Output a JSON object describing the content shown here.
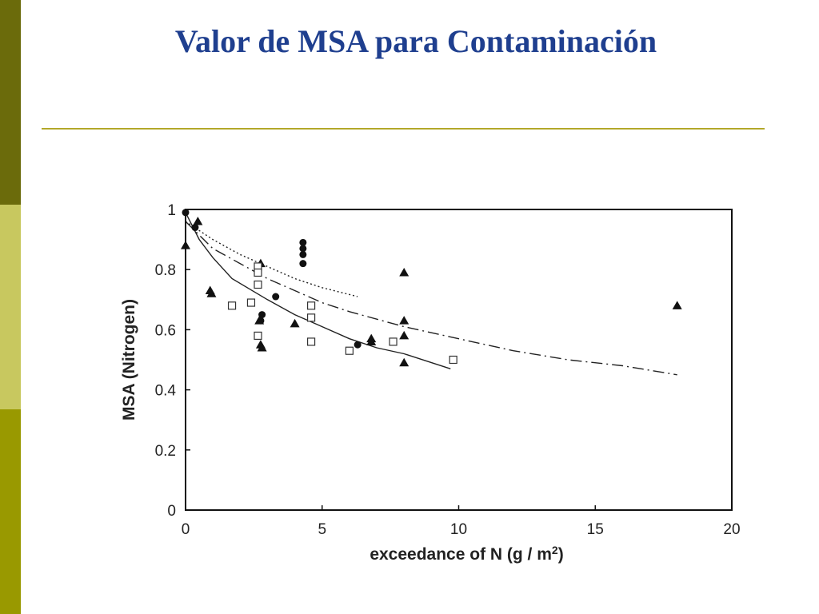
{
  "slide": {
    "title": "Valor de MSA para Contaminación",
    "accent_colors": {
      "title": "#1f3f8f",
      "rule": "#b3a82a",
      "bar_dark": "#6b6b0b",
      "bar_light": "#c8c85f",
      "bar_mid": "#999900"
    }
  },
  "chart_data": {
    "type": "scatter",
    "xlabel": "exceedance of N (g / m2)",
    "ylabel": "MSA (Nitrogen)",
    "xlim": [
      0,
      20
    ],
    "ylim": [
      0,
      1
    ],
    "xticks": [
      "0",
      "5",
      "10",
      "15",
      "20"
    ],
    "yticks": [
      "0",
      "0.2",
      "0.4",
      "0.6",
      "0.8",
      "1"
    ],
    "grid": false,
    "series": [
      {
        "marker": "circle",
        "points": [
          [
            0,
            0.99
          ],
          [
            0.35,
            0.94
          ],
          [
            2.75,
            0.63
          ],
          [
            2.8,
            0.65
          ],
          [
            3.3,
            0.71
          ],
          [
            4.3,
            0.89
          ],
          [
            4.3,
            0.87
          ],
          [
            4.3,
            0.85
          ],
          [
            4.3,
            0.82
          ],
          [
            6.3,
            0.55
          ]
        ]
      },
      {
        "marker": "triangle",
        "points": [
          [
            0,
            0.88
          ],
          [
            0.45,
            0.96
          ],
          [
            0.9,
            0.73
          ],
          [
            0.95,
            0.72
          ],
          [
            2.75,
            0.82
          ],
          [
            2.7,
            0.63
          ],
          [
            2.75,
            0.55
          ],
          [
            2.8,
            0.54
          ],
          [
            4.0,
            0.62
          ],
          [
            6.8,
            0.57
          ],
          [
            6.8,
            0.56
          ],
          [
            8.0,
            0.79
          ],
          [
            8.0,
            0.63
          ],
          [
            8.0,
            0.58
          ],
          [
            8.0,
            0.49
          ],
          [
            18.0,
            0.68
          ]
        ]
      },
      {
        "marker": "square",
        "points": [
          [
            1.7,
            0.68
          ],
          [
            2.4,
            0.69
          ],
          [
            2.65,
            0.81
          ],
          [
            2.65,
            0.79
          ],
          [
            2.65,
            0.75
          ],
          [
            2.65,
            0.58
          ],
          [
            4.6,
            0.68
          ],
          [
            4.6,
            0.64
          ],
          [
            4.6,
            0.56
          ],
          [
            6.0,
            0.53
          ],
          [
            7.6,
            0.56
          ],
          [
            9.8,
            0.5
          ]
        ]
      }
    ],
    "curves": [
      {
        "style": "dotted",
        "points": [
          [
            0,
            0.96
          ],
          [
            1,
            0.9
          ],
          [
            2,
            0.85
          ],
          [
            3,
            0.81
          ],
          [
            4,
            0.77
          ],
          [
            5,
            0.74
          ],
          [
            6.3,
            0.71
          ]
        ]
      },
      {
        "style": "solid",
        "points": [
          [
            0,
            0.99
          ],
          [
            0.5,
            0.9
          ],
          [
            1,
            0.84
          ],
          [
            1.7,
            0.77
          ],
          [
            3,
            0.7
          ],
          [
            4,
            0.65
          ],
          [
            5,
            0.61
          ],
          [
            6,
            0.57
          ],
          [
            7,
            0.54
          ],
          [
            8,
            0.52
          ],
          [
            9.7,
            0.47
          ]
        ]
      },
      {
        "style": "dashdot",
        "points": [
          [
            0,
            0.96
          ],
          [
            1,
            0.87
          ],
          [
            2,
            0.82
          ],
          [
            3,
            0.77
          ],
          [
            4,
            0.73
          ],
          [
            5,
            0.69
          ],
          [
            6,
            0.66
          ],
          [
            8,
            0.61
          ],
          [
            10,
            0.57
          ],
          [
            12,
            0.53
          ],
          [
            14,
            0.5
          ],
          [
            16,
            0.48
          ],
          [
            18,
            0.45
          ]
        ]
      }
    ]
  }
}
